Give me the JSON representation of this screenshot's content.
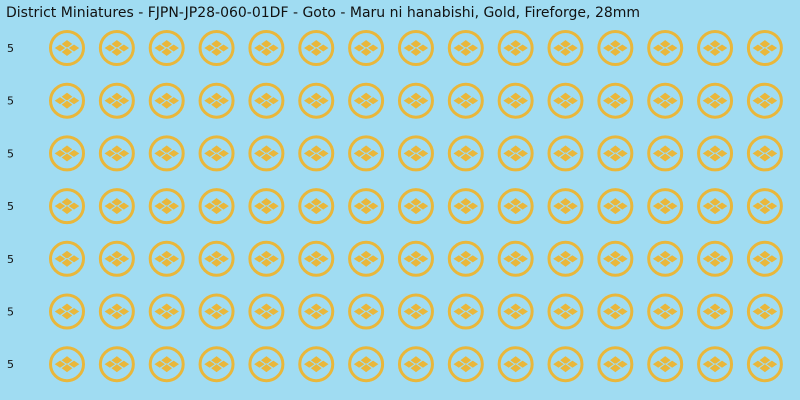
{
  "title": "District Miniatures - FJPN-JP28-060-01DF - Goto - Maru ni hanabishi, Gold, Fireforge, 28mm",
  "rows": [
    {
      "label": "5"
    },
    {
      "label": "5"
    },
    {
      "label": "5"
    },
    {
      "label": "5"
    },
    {
      "label": "5"
    },
    {
      "label": "5"
    },
    {
      "label": "5"
    }
  ]
}
